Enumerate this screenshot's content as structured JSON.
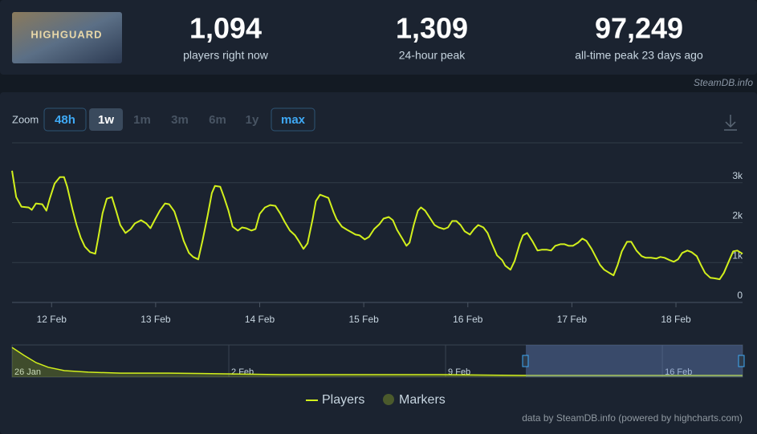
{
  "header": {
    "logo_text": "HIGHGUARD",
    "stats": [
      {
        "value": "1,094",
        "label": "players right now"
      },
      {
        "value": "1,309",
        "label": "24-hour peak"
      },
      {
        "value": "97,249",
        "label": "all-time peak 23 days ago"
      }
    ],
    "watermark": "SteamDB.info"
  },
  "zoom": {
    "label": "Zoom",
    "buttons": [
      "48h",
      "1w",
      "1m",
      "3m",
      "6m",
      "1y",
      "max"
    ]
  },
  "chart_data": [
    {
      "type": "line",
      "x": [
        11.62,
        11.66,
        11.71,
        11.78,
        11.81,
        11.85,
        11.91,
        11.95,
        11.98,
        12.03,
        12.08,
        12.12,
        12.15,
        12.2,
        12.24,
        12.28,
        12.32,
        12.37,
        12.42,
        12.45,
        12.49,
        12.53,
        12.58,
        12.62,
        12.66,
        12.71,
        12.76,
        12.8,
        12.86,
        12.91,
        12.95,
        12.99,
        13.04,
        13.09,
        13.13,
        13.18,
        13.23,
        13.27,
        13.32,
        13.36,
        13.41,
        13.45,
        13.5,
        13.54,
        13.57,
        13.62,
        13.66,
        13.7,
        13.74,
        13.79,
        13.83,
        13.87,
        13.92,
        13.96,
        14.0,
        14.05,
        14.1,
        14.15,
        14.2,
        14.24,
        14.29,
        14.34,
        14.37,
        14.42,
        14.46,
        14.51,
        14.54,
        14.58,
        14.62,
        14.66,
        14.71,
        14.74,
        14.79,
        14.84,
        14.88,
        14.92,
        14.96,
        15.01,
        15.05,
        15.1,
        15.15,
        15.19,
        15.24,
        15.28,
        15.32,
        15.37,
        15.41,
        15.44,
        15.48,
        15.52,
        15.55,
        15.59,
        15.64,
        15.68,
        15.72,
        15.77,
        15.81,
        15.85,
        15.89,
        15.93,
        15.97,
        16.02,
        16.06,
        16.1,
        16.15,
        16.19,
        16.23,
        16.28,
        16.33,
        16.36,
        16.41,
        16.45,
        16.5,
        16.53,
        16.57,
        16.62,
        16.67,
        16.71,
        16.76,
        16.8,
        16.84,
        16.89,
        16.93,
        16.97,
        17.01,
        17.06,
        17.1,
        17.14,
        17.19,
        17.23,
        17.27,
        17.31,
        17.36,
        17.4,
        17.44,
        17.48,
        17.53,
        17.57,
        17.62,
        17.67,
        17.71,
        17.76,
        17.81,
        17.85,
        17.89,
        17.94,
        17.98,
        18.02,
        18.06,
        18.11,
        18.15,
        18.2,
        18.24,
        18.28,
        18.33,
        18.38,
        18.42,
        18.46,
        18.51,
        18.55,
        18.59,
        18.64
      ],
      "series": [
        {
          "name": "Players",
          "color": "#d2f01c",
          "values": [
            3300,
            2640,
            2400,
            2380,
            2320,
            2480,
            2460,
            2300,
            2580,
            2980,
            3140,
            3140,
            2900,
            2340,
            1940,
            1620,
            1400,
            1260,
            1220,
            1640,
            2240,
            2600,
            2640,
            2300,
            1940,
            1740,
            1840,
            1980,
            2060,
            1980,
            1860,
            2060,
            2300,
            2480,
            2460,
            2280,
            1880,
            1540,
            1240,
            1140,
            1080,
            1540,
            2180,
            2740,
            2920,
            2900,
            2620,
            2300,
            1900,
            1800,
            1880,
            1860,
            1800,
            1840,
            2220,
            2380,
            2440,
            2420,
            2220,
            2020,
            1800,
            1680,
            1560,
            1340,
            1480,
            2100,
            2540,
            2700,
            2660,
            2620,
            2260,
            2080,
            1900,
            1820,
            1760,
            1700,
            1680,
            1580,
            1640,
            1840,
            1960,
            2100,
            2140,
            2060,
            1820,
            1600,
            1420,
            1500,
            1940,
            2300,
            2380,
            2300,
            2100,
            1940,
            1880,
            1840,
            1880,
            2040,
            2040,
            1940,
            1780,
            1700,
            1840,
            1940,
            1880,
            1740,
            1480,
            1180,
            1060,
            920,
            820,
            1040,
            1480,
            1680,
            1740,
            1540,
            1300,
            1320,
            1320,
            1300,
            1420,
            1460,
            1460,
            1420,
            1420,
            1500,
            1600,
            1540,
            1340,
            1140,
            940,
            820,
            740,
            680,
            940,
            1280,
            1520,
            1520,
            1300,
            1160,
            1120,
            1120,
            1100,
            1140,
            1120,
            1060,
            1020,
            1080,
            1240,
            1300,
            1260,
            1160,
            940,
            740,
            620,
            600,
            580,
            740,
            1040,
            1280,
            1300,
            1220
          ]
        }
      ],
      "xlim": [
        11.62,
        18.64
      ],
      "xticks": [
        {
          "value": 12,
          "label": "12 Feb"
        },
        {
          "value": 13,
          "label": "13 Feb"
        },
        {
          "value": 14,
          "label": "14 Feb"
        },
        {
          "value": 15,
          "label": "15 Feb"
        },
        {
          "value": 16,
          "label": "16 Feb"
        },
        {
          "value": 17,
          "label": "17 Feb"
        },
        {
          "value": 18,
          "label": "18 Feb"
        }
      ],
      "ylim": [
        0,
        4000
      ],
      "yticks": [
        0,
        {
          "value": 1000,
          "label": "1k"
        },
        {
          "value": 2000,
          "label": "2k"
        },
        {
          "value": 3000,
          "label": "3k"
        }
      ],
      "grid": true
    },
    {
      "type": "area",
      "x": [
        26,
        26.39,
        26.78,
        27.17,
        27.69,
        28.46,
        29.5,
        31.06,
        32.87,
        34.69,
        37.28,
        39.87,
        42.46,
        49.59
      ],
      "series": [
        {
          "name": "Players",
          "color": "#d2f01c",
          "values": [
            97000,
            71000,
            47000,
            32000,
            21000,
            16000,
            13000,
            13000,
            10500,
            8000,
            8000,
            8000,
            5300,
            5300
          ]
        }
      ],
      "xlim": [
        26,
        49.59
      ],
      "xticks": [
        {
          "value": 26,
          "label": "26 Jan"
        },
        {
          "value": 33,
          "label": "2 Feb"
        },
        {
          "value": 40,
          "label": "9 Feb"
        },
        {
          "value": 47,
          "label": "16 Feb"
        }
      ],
      "ylim": [
        0,
        100000
      ]
    }
  ],
  "legend_extra": "Markers",
  "credit": "data by SteamDB.info (powered by highcharts.com)"
}
